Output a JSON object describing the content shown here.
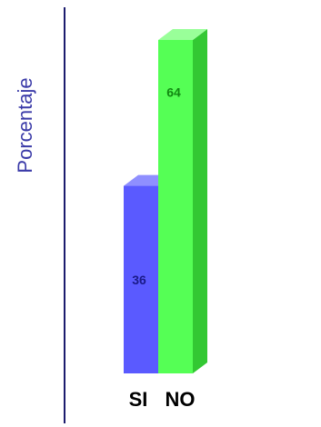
{
  "chart_data": {
    "type": "bar",
    "title": "",
    "xlabel": "",
    "ylabel": "Porcentaje",
    "categories": [
      "SI",
      "NO"
    ],
    "values": [
      36,
      64
    ],
    "data_labels": [
      "36",
      "64"
    ],
    "ylim": [
      0,
      64
    ],
    "grid": false,
    "legend": "none",
    "three_d": true
  },
  "colors": {
    "axis": "#1c1c6e",
    "ylabel": "#3a3aa8",
    "bars": [
      {
        "front": "#5a5aff",
        "top": "#8f8fff",
        "side": "#3838c8",
        "label": "#1a1a88"
      },
      {
        "front": "#55ff55",
        "top": "#99ff99",
        "side": "#33c833",
        "label": "#118811"
      }
    ],
    "category_label": "#000000"
  }
}
